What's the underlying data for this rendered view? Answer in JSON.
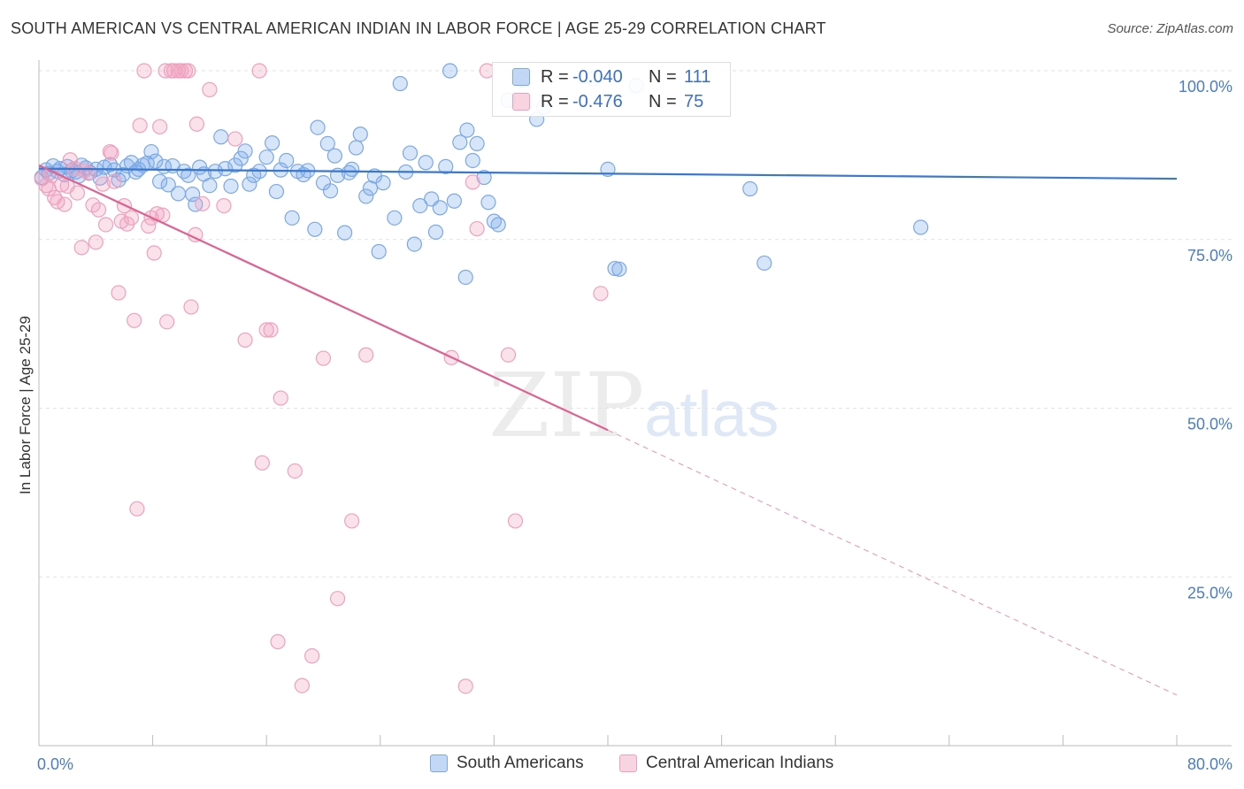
{
  "header": {
    "title": "SOUTH AMERICAN VS CENTRAL AMERICAN INDIAN IN LABOR FORCE | AGE 25-29 CORRELATION CHART",
    "source": "Source: ZipAtlas.com"
  },
  "watermark": {
    "zip": "ZIP",
    "atlas": "atlas"
  },
  "legend": {
    "rows": [
      {
        "r_label": "R =",
        "r_value": "-0.040",
        "n_label": "N =",
        "n_value": "111",
        "color": "#7aa8e8"
      },
      {
        "r_label": "R =",
        "r_value": "-0.476",
        "n_label": "N =",
        "n_value": "75",
        "color": "#f0a0bc"
      }
    ]
  },
  "bottom_legend": [
    {
      "label": "South Americans",
      "color": "#7aa8e8"
    },
    {
      "label": "Central American Indians",
      "color": "#f0a0bc"
    }
  ],
  "chart_data": {
    "type": "scatter",
    "title": "SOUTH AMERICAN VS CENTRAL AMERICAN INDIAN IN LABOR FORCE | AGE 25-29 CORRELATION CHART",
    "ylabel": "In Labor Force | Age 25-29",
    "xlim": [
      0,
      80
    ],
    "ylim": [
      0,
      100
    ],
    "x_tick_labels": [
      "0.0%",
      "80.0%"
    ],
    "y_ticks": [
      25,
      50,
      75,
      100
    ],
    "y_tick_labels": [
      "25.0%",
      "50.0%",
      "75.0%",
      "100.0%"
    ],
    "grid": true,
    "legend": "top-center",
    "series": [
      {
        "name": "South Americans",
        "color": "#7aa8e8",
        "line_color": "#3a78d0",
        "trend": {
          "x": [
            0,
            80
          ],
          "y": [
            85.5,
            84.0
          ],
          "dashed_from": null
        },
        "points": [
          [
            0.2,
            84.2
          ],
          [
            0.5,
            85.3
          ],
          [
            0.7,
            84.8
          ],
          [
            1.0,
            85.9
          ],
          [
            1.3,
            85.1
          ],
          [
            1.5,
            85.5
          ],
          [
            1.8,
            84.6
          ],
          [
            2.0,
            85.8
          ],
          [
            2.3,
            85.2
          ],
          [
            2.6,
            85.0
          ],
          [
            2.8,
            84.4
          ],
          [
            3.0,
            86.0
          ],
          [
            3.3,
            85.6
          ],
          [
            3.6,
            84.9
          ],
          [
            4.0,
            85.4
          ],
          [
            4.3,
            84.1
          ],
          [
            4.6,
            85.7
          ],
          [
            5.0,
            86.1
          ],
          [
            5.3,
            85.3
          ],
          [
            5.6,
            83.8
          ],
          [
            5.9,
            84.6
          ],
          [
            6.2,
            85.9
          ],
          [
            6.5,
            86.4
          ],
          [
            6.8,
            85.0
          ],
          [
            7.0,
            85.4
          ],
          [
            7.3,
            86.0
          ],
          [
            7.6,
            86.3
          ],
          [
            7.9,
            88.0
          ],
          [
            8.2,
            86.6
          ],
          [
            8.5,
            83.6
          ],
          [
            8.8,
            85.8
          ],
          [
            9.1,
            83.1
          ],
          [
            9.4,
            85.9
          ],
          [
            9.8,
            81.8
          ],
          [
            10.2,
            85.1
          ],
          [
            10.5,
            84.5
          ],
          [
            10.8,
            81.7
          ],
          [
            11.0,
            80.2
          ],
          [
            11.3,
            85.7
          ],
          [
            11.6,
            84.7
          ],
          [
            12.0,
            83.0
          ],
          [
            12.4,
            85.1
          ],
          [
            12.8,
            90.2
          ],
          [
            13.1,
            85.5
          ],
          [
            13.5,
            82.9
          ],
          [
            13.8,
            86.0
          ],
          [
            14.2,
            87.0
          ],
          [
            14.5,
            88.1
          ],
          [
            14.8,
            83.2
          ],
          [
            15.1,
            84.5
          ],
          [
            15.5,
            85.1
          ],
          [
            16.0,
            87.2
          ],
          [
            16.4,
            89.3
          ],
          [
            16.7,
            82.1
          ],
          [
            17.0,
            85.3
          ],
          [
            17.4,
            86.7
          ],
          [
            17.8,
            78.2
          ],
          [
            18.2,
            85.1
          ],
          [
            18.6,
            84.6
          ],
          [
            18.9,
            85.2
          ],
          [
            19.4,
            76.5
          ],
          [
            19.6,
            91.6
          ],
          [
            20.0,
            83.4
          ],
          [
            20.3,
            89.2
          ],
          [
            20.5,
            82.2
          ],
          [
            20.8,
            87.4
          ],
          [
            21.0,
            84.5
          ],
          [
            21.5,
            76.0
          ],
          [
            21.8,
            84.9
          ],
          [
            22.0,
            85.4
          ],
          [
            22.3,
            88.6
          ],
          [
            22.6,
            90.6
          ],
          [
            23.0,
            81.4
          ],
          [
            23.3,
            82.6
          ],
          [
            23.6,
            84.4
          ],
          [
            23.9,
            73.2
          ],
          [
            24.2,
            83.4
          ],
          [
            25.0,
            78.2
          ],
          [
            25.4,
            98.1
          ],
          [
            25.8,
            85.0
          ],
          [
            26.1,
            87.8
          ],
          [
            26.4,
            74.3
          ],
          [
            26.8,
            80.0
          ],
          [
            27.2,
            86.4
          ],
          [
            27.6,
            81.0
          ],
          [
            27.9,
            76.1
          ],
          [
            28.2,
            79.7
          ],
          [
            28.6,
            85.8
          ],
          [
            28.9,
            100.0
          ],
          [
            29.2,
            80.7
          ],
          [
            29.6,
            89.4
          ],
          [
            30.0,
            69.4
          ],
          [
            30.1,
            91.2
          ],
          [
            30.5,
            86.7
          ],
          [
            30.8,
            89.2
          ],
          [
            31.3,
            84.2
          ],
          [
            31.6,
            80.5
          ],
          [
            32.0,
            77.7
          ],
          [
            32.3,
            77.2
          ],
          [
            33.0,
            95.6
          ],
          [
            34.0,
            98.6
          ],
          [
            35.0,
            92.8
          ],
          [
            35.5,
            94.6
          ],
          [
            39.0,
            98.8
          ],
          [
            40.0,
            85.4
          ],
          [
            40.5,
            70.7
          ],
          [
            40.8,
            70.6
          ],
          [
            42.0,
            97.8
          ],
          [
            50.0,
            82.5
          ],
          [
            51.0,
            71.5
          ],
          [
            62.0,
            76.8
          ]
        ]
      },
      {
        "name": "Central American Indians",
        "color": "#f0a0bc",
        "line_color": "#e06090",
        "trend": {
          "x": [
            0,
            80
          ],
          "y": [
            86.0,
            7.5
          ],
          "dashed_from": 40
        },
        "points": [
          [
            0.2,
            84.0
          ],
          [
            0.5,
            83.0
          ],
          [
            0.7,
            82.5
          ],
          [
            0.9,
            84.5
          ],
          [
            1.1,
            81.2
          ],
          [
            1.3,
            80.6
          ],
          [
            1.6,
            83.1
          ],
          [
            1.8,
            80.2
          ],
          [
            2.0,
            82.9
          ],
          [
            2.2,
            86.8
          ],
          [
            2.5,
            85.5
          ],
          [
            2.7,
            81.9
          ],
          [
            3.0,
            73.8
          ],
          [
            3.2,
            85.2
          ],
          [
            3.5,
            84.8
          ],
          [
            3.8,
            80.1
          ],
          [
            4.0,
            74.6
          ],
          [
            4.2,
            79.4
          ],
          [
            4.5,
            83.2
          ],
          [
            4.7,
            77.2
          ],
          [
            5.0,
            88.0
          ],
          [
            5.1,
            87.8
          ],
          [
            5.3,
            83.6
          ],
          [
            5.6,
            67.1
          ],
          [
            5.8,
            77.7
          ],
          [
            6.0,
            80.0
          ],
          [
            6.2,
            77.3
          ],
          [
            6.5,
            78.2
          ],
          [
            6.7,
            63.0
          ],
          [
            6.9,
            35.1
          ],
          [
            7.1,
            91.9
          ],
          [
            7.4,
            100.0
          ],
          [
            7.7,
            77.0
          ],
          [
            7.9,
            78.2
          ],
          [
            8.1,
            73.0
          ],
          [
            8.3,
            78.8
          ],
          [
            8.5,
            91.7
          ],
          [
            8.7,
            78.6
          ],
          [
            8.9,
            100.0
          ],
          [
            9.0,
            62.8
          ],
          [
            9.3,
            100.0
          ],
          [
            9.5,
            100.0
          ],
          [
            9.8,
            100.0
          ],
          [
            10.0,
            100.0
          ],
          [
            10.3,
            100.0
          ],
          [
            10.5,
            100.0
          ],
          [
            10.7,
            65.0
          ],
          [
            11.0,
            75.7
          ],
          [
            11.1,
            92.1
          ],
          [
            11.5,
            80.3
          ],
          [
            12.0,
            97.2
          ],
          [
            13.0,
            80.0
          ],
          [
            13.8,
            89.9
          ],
          [
            14.5,
            60.1
          ],
          [
            15.5,
            100.0
          ],
          [
            15.7,
            41.9
          ],
          [
            16.0,
            61.6
          ],
          [
            16.3,
            61.6
          ],
          [
            16.8,
            15.4
          ],
          [
            17.0,
            51.5
          ],
          [
            18.0,
            40.7
          ],
          [
            18.5,
            8.9
          ],
          [
            19.2,
            13.3
          ],
          [
            20.0,
            57.4
          ],
          [
            21.0,
            21.8
          ],
          [
            22.0,
            33.3
          ],
          [
            23.0,
            57.9
          ],
          [
            29.0,
            57.5
          ],
          [
            30.0,
            8.8
          ],
          [
            30.5,
            83.5
          ],
          [
            30.8,
            76.6
          ],
          [
            31.5,
            100.0
          ],
          [
            33.0,
            57.9
          ],
          [
            33.5,
            33.3
          ],
          [
            39.5,
            67.0
          ]
        ]
      }
    ]
  }
}
